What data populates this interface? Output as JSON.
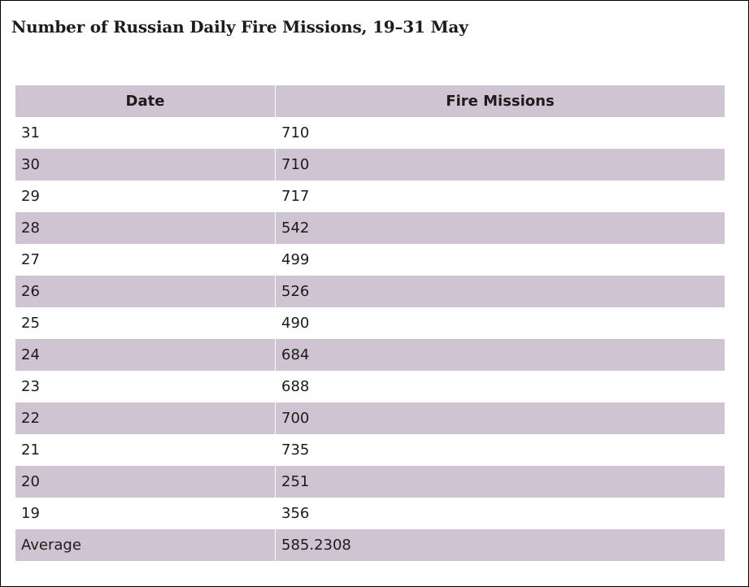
{
  "title": "Number of Russian Daily Fire Missions, 19–31 May",
  "colors": {
    "row_shade": "#cec4d2",
    "text": "#1c1c1c"
  },
  "chart_data": {
    "type": "table",
    "title": "Number of Russian Daily Fire Missions, 19–31 May",
    "columns": [
      "Date",
      "Fire Missions"
    ],
    "rows": [
      [
        "31",
        "710"
      ],
      [
        "30",
        "710"
      ],
      [
        "29",
        "717"
      ],
      [
        "28",
        "542"
      ],
      [
        "27",
        "499"
      ],
      [
        "26",
        "526"
      ],
      [
        "25",
        "490"
      ],
      [
        "24",
        "684"
      ],
      [
        "23",
        "688"
      ],
      [
        "22",
        "700"
      ],
      [
        "21",
        "735"
      ],
      [
        "20",
        "251"
      ],
      [
        "19",
        "356"
      ],
      [
        "Average",
        "585.2308"
      ]
    ]
  }
}
